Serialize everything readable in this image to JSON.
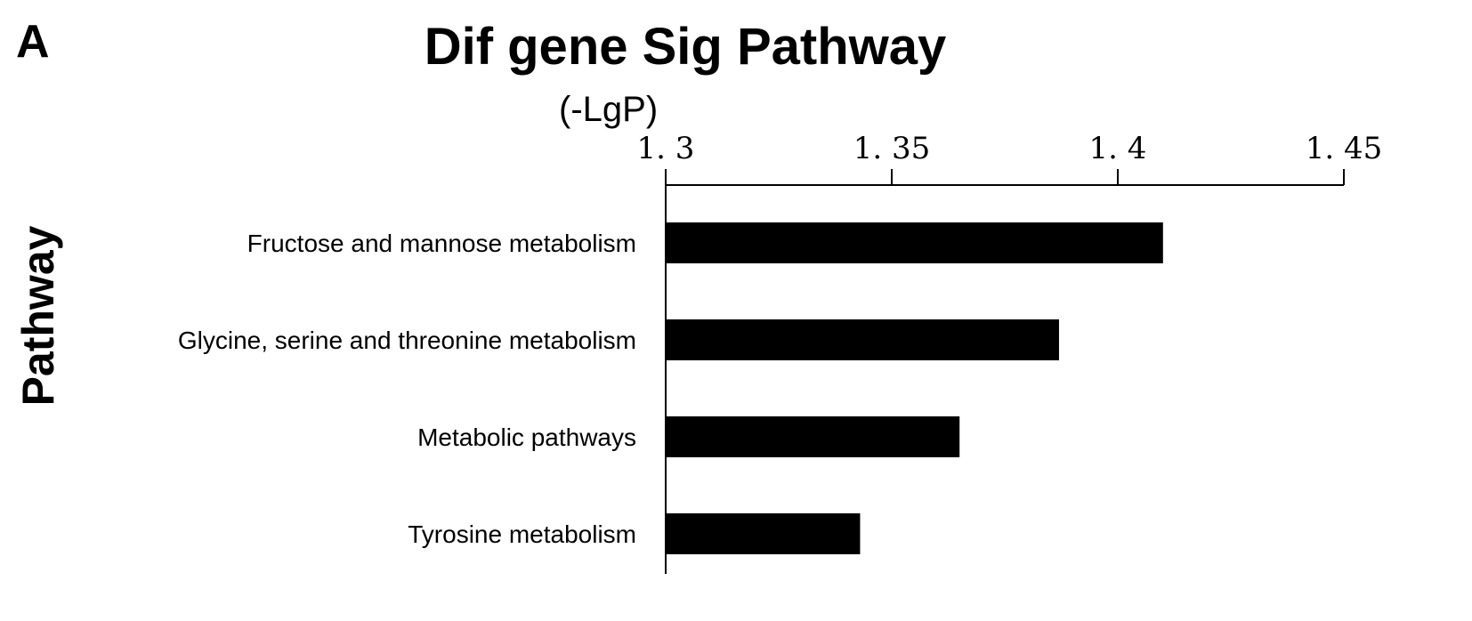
{
  "panel_label": "A",
  "chart_data": {
    "type": "bar",
    "orientation": "horizontal",
    "title": "Dif gene Sig Pathway",
    "xlabel": "(-LgP)",
    "ylabel": "Pathway",
    "xlim": [
      1.3,
      1.45
    ],
    "x_ticks": [
      1.3,
      1.35,
      1.4,
      1.45
    ],
    "x_tick_labels": [
      "1. 3",
      "1. 35",
      "1. 4",
      "1. 45"
    ],
    "x_axis_position": "top",
    "grid": false,
    "categories": [
      "Fructose and mannose metabolism",
      "Glycine, serine and threonine metabolism",
      "Metabolic pathways",
      "Tyrosine metabolism"
    ],
    "values": [
      1.41,
      1.387,
      1.365,
      1.343
    ],
    "bar_color": "#000000"
  }
}
